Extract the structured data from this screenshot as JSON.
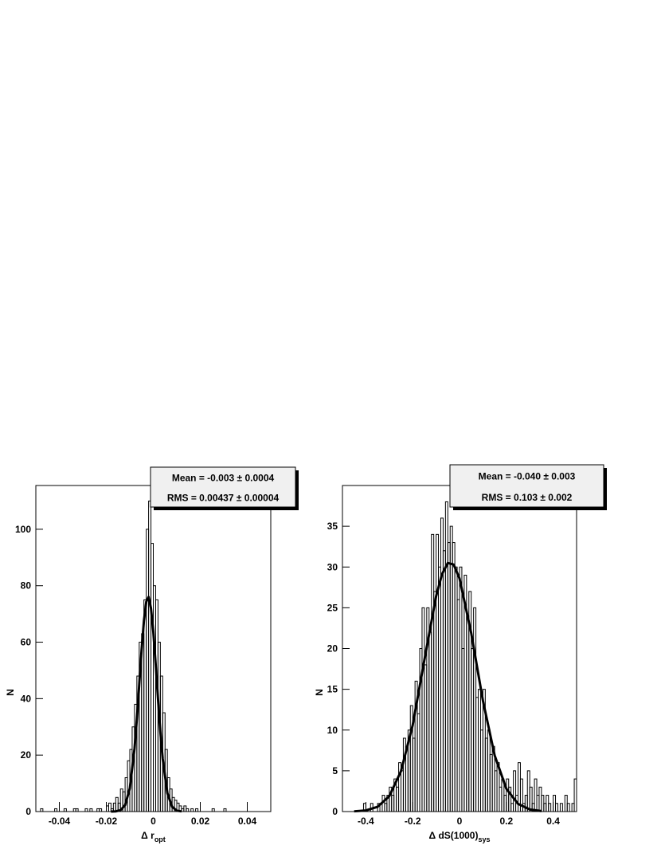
{
  "chart_data": [
    {
      "type": "histogram",
      "bins": [
        -0.05,
        -0.049,
        -0.048,
        -0.047,
        -0.046,
        -0.045,
        -0.044,
        -0.043,
        -0.042,
        -0.041,
        -0.04,
        -0.039,
        -0.038,
        -0.037,
        -0.036,
        -0.035,
        -0.034,
        -0.033,
        -0.032,
        -0.031,
        -0.03,
        -0.029,
        -0.028,
        -0.027,
        -0.026,
        -0.025,
        -0.024,
        -0.023,
        -0.022,
        -0.021,
        -0.02,
        -0.019,
        -0.018,
        -0.017,
        -0.016,
        -0.015,
        -0.014,
        -0.013,
        -0.012,
        -0.011,
        -0.01,
        -0.009,
        -0.008,
        -0.007,
        -0.006,
        -0.005,
        -0.004,
        -0.003,
        -0.002,
        -0.001,
        0,
        0.001,
        0.002,
        0.003,
        0.004,
        0.005,
        0.006,
        0.007,
        0.008,
        0.009,
        0.01,
        0.011,
        0.012,
        0.013,
        0.014,
        0.015,
        0.016,
        0.017,
        0.018,
        0.019,
        0.02,
        0.021,
        0.022,
        0.023,
        0.024,
        0.025,
        0.026,
        0.027,
        0.028,
        0.029,
        0.03,
        0.031,
        0.032,
        0.033,
        0.034,
        0.035,
        0.036,
        0.037,
        0.038,
        0.039,
        0.04,
        0.041,
        0.042,
        0.043,
        0.044,
        0.045,
        0.046,
        0.047,
        0.048,
        0.049,
        0.05
      ],
      "counts": [
        0,
        0,
        1,
        0,
        0,
        0,
        0,
        0,
        1,
        0,
        0,
        0,
        1,
        0,
        0,
        0,
        1,
        1,
        0,
        0,
        0,
        1,
        0,
        1,
        0,
        0,
        1,
        1,
        0,
        0,
        2,
        3,
        1,
        3,
        5,
        3,
        8,
        7,
        12,
        18,
        22,
        30,
        38,
        48,
        60,
        63,
        75,
        100,
        110,
        95,
        80,
        75,
        60,
        48,
        35,
        22,
        12,
        8,
        5,
        4,
        3,
        2,
        1,
        2,
        1,
        0,
        1,
        0,
        1,
        0,
        0,
        0,
        0,
        0,
        0,
        1,
        0,
        0,
        0,
        0,
        1,
        0,
        0,
        0,
        0,
        0,
        0,
        0,
        0,
        0,
        0,
        0,
        0,
        0,
        0,
        0,
        0,
        0,
        0,
        0
      ],
      "color": "#000000",
      "fit": {
        "x": [
          -0.018,
          -0.016,
          -0.014,
          -0.012,
          -0.01,
          -0.008,
          -0.007,
          -0.006,
          -0.005,
          -0.004,
          -0.003,
          -0.002,
          -0.001,
          0,
          0.001,
          0.002,
          0.003,
          0.004,
          0.006,
          0.008,
          0.01,
          0.012
        ],
        "values": [
          0.01,
          0.07,
          0.47,
          2.3,
          8.2,
          22.3,
          32.8,
          44.9,
          57.1,
          67.5,
          74.3,
          76,
          72.1,
          63.7,
          52.3,
          39.9,
          28.3,
          18.7,
          6.5,
          1.7,
          0.33,
          0.05
        ],
        "color": "#000000"
      },
      "xlim": [
        -0.05,
        0.05
      ],
      "ylim": [
        0,
        115.5
      ],
      "xticks": [
        -0.04,
        -0.02,
        0,
        0.02,
        0.04
      ],
      "yticks": [
        0,
        20,
        40,
        60,
        80,
        100
      ],
      "xlabel": "Δ r",
      "xlabel_sub": "opt",
      "ylabel": "N",
      "stats": [
        "Mean = -0.003 ± 0.0004",
        "RMS = 0.00437 ± 0.00004"
      ]
    },
    {
      "type": "histogram",
      "bins": [
        -0.5,
        -0.49,
        -0.48,
        -0.47,
        -0.46,
        -0.45,
        -0.44,
        -0.43,
        -0.42,
        -0.41,
        -0.4,
        -0.39,
        -0.38,
        -0.37,
        -0.36,
        -0.35,
        -0.34,
        -0.33,
        -0.32,
        -0.31,
        -0.3,
        -0.29,
        -0.28,
        -0.27,
        -0.26,
        -0.25,
        -0.24,
        -0.23,
        -0.22,
        -0.21,
        -0.2,
        -0.19,
        -0.18,
        -0.17,
        -0.16,
        -0.15,
        -0.14,
        -0.13,
        -0.12,
        -0.11,
        -0.1,
        -0.09,
        -0.08,
        -0.07,
        -0.06,
        -0.05,
        -0.04,
        -0.03,
        -0.02,
        -0.01,
        0,
        0.01,
        0.02,
        0.03,
        0.04,
        0.05,
        0.06,
        0.07,
        0.08,
        0.09,
        0.1,
        0.11,
        0.12,
        0.13,
        0.14,
        0.15,
        0.16,
        0.17,
        0.18,
        0.19,
        0.2,
        0.21,
        0.22,
        0.23,
        0.24,
        0.25,
        0.26,
        0.27,
        0.28,
        0.29,
        0.3,
        0.31,
        0.32,
        0.33,
        0.34,
        0.35,
        0.36,
        0.37,
        0.38,
        0.39,
        0.4,
        0.41,
        0.42,
        0.43,
        0.44,
        0.45,
        0.46,
        0.47,
        0.48,
        0.49,
        0.5
      ],
      "counts": [
        0,
        0,
        0,
        0,
        0,
        0,
        0,
        0,
        0,
        1,
        0,
        0,
        1,
        0,
        0,
        1,
        0,
        2,
        1,
        2,
        3,
        2,
        4,
        3,
        6,
        5,
        9,
        8,
        10,
        13,
        9,
        16,
        12,
        20,
        25,
        18,
        25,
        22,
        34,
        27,
        34,
        30,
        36,
        32,
        38,
        33,
        35,
        33,
        30,
        26,
        30,
        20,
        29,
        24,
        27,
        20,
        25,
        14,
        15,
        10,
        15,
        9,
        10,
        7,
        8,
        5,
        6,
        3,
        4,
        2,
        4,
        3,
        1,
        5,
        2,
        6,
        4,
        1,
        2,
        5,
        3,
        1,
        4,
        2,
        3,
        2,
        1,
        2,
        1,
        0,
        2,
        1,
        0,
        1,
        0,
        2,
        1,
        0,
        1,
        4
      ],
      "color": "#000000",
      "fit": {
        "x": [
          -0.45,
          -0.4,
          -0.35,
          -0.3,
          -0.25,
          -0.2,
          -0.15,
          -0.1,
          -0.075,
          -0.05,
          -0.025,
          0,
          0.05,
          0.1,
          0.15,
          0.2,
          0.25,
          0.3,
          0.35
        ],
        "values": [
          0.03,
          0.14,
          0.58,
          1.88,
          4.95,
          10.6,
          18.6,
          26.4,
          29.1,
          30.5,
          30.3,
          28.6,
          21.9,
          13.6,
          6.9,
          2.8,
          0.95,
          0.26,
          0.06
        ],
        "color": "#000000"
      },
      "xlim": [
        -0.5,
        0.5
      ],
      "ylim": [
        0,
        40
      ],
      "xticks": [
        -0.4,
        -0.2,
        0,
        0.2,
        0.4
      ],
      "yticks": [
        0,
        5,
        10,
        15,
        20,
        25,
        30,
        35
      ],
      "xlabel": "Δ dS(1000)",
      "xlabel_sub": "sys",
      "ylabel": "N",
      "stats": [
        "Mean = -0.040 ± 0.003",
        "RMS = 0.103 ± 0.002"
      ]
    }
  ]
}
